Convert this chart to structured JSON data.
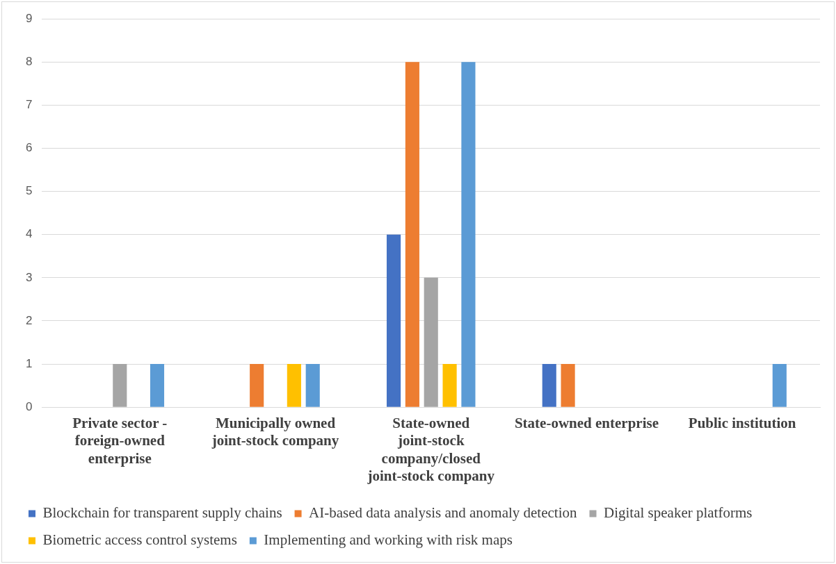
{
  "chart_data": {
    "type": "bar",
    "categories": [
      "Private sector - foreign-owned enterprise",
      "Municipally owned joint-stock company",
      "State-owned joint-stock company/closed joint-stock company",
      "State-owned enterprise",
      "Public institution"
    ],
    "series": [
      {
        "name": "Blockchain for transparent supply chains",
        "color": "#4472c4",
        "values": [
          0,
          0,
          4,
          1,
          0
        ]
      },
      {
        "name": "AI-based data analysis and anomaly detection",
        "color": "#ed7d31",
        "values": [
          0,
          1,
          8,
          1,
          0
        ]
      },
      {
        "name": "Digital speaker platforms",
        "color": "#a5a5a5",
        "values": [
          1,
          0,
          3,
          0,
          0
        ]
      },
      {
        "name": "Biometric access control systems",
        "color": "#ffc000",
        "values": [
          0,
          1,
          1,
          0,
          0
        ]
      },
      {
        "name": "Implementing and working with risk maps",
        "color": "#5b9bd5",
        "values": [
          1,
          1,
          8,
          0,
          1
        ]
      }
    ],
    "ylim": [
      0,
      9
    ],
    "yticks": [
      0,
      1,
      2,
      3,
      4,
      5,
      6,
      7,
      8,
      9
    ],
    "grid": "y",
    "legend": "bottom"
  }
}
